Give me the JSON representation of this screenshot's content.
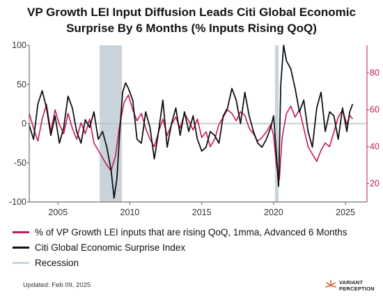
{
  "chart_data": {
    "type": "line",
    "title": "VP Growth LEI Input Diffusion Leads Citi Global Economic Surprise By 6 Months (% Inputs Rising QoQ)",
    "x_range": [
      2003.0,
      2026.5
    ],
    "x_ticks": [
      2005,
      2010,
      2015,
      2020,
      2025
    ],
    "left_axis": {
      "range": [
        -100,
        100
      ],
      "ticks": [
        -100,
        -50,
        0,
        50,
        100
      ]
    },
    "right_axis": {
      "range": [
        10,
        95
      ],
      "ticks": [
        20,
        40,
        60,
        80
      ]
    },
    "grid": false,
    "reference_line": {
      "axis": "left",
      "value": 0
    },
    "recessions": [
      {
        "start": 2007.9,
        "end": 2009.45
      },
      {
        "start": 2020.1,
        "end": 2020.35
      }
    ],
    "series": [
      {
        "name": "% of VP Growth LEI inputs that are rising QoQ, 1mma, Advanced 6 Months",
        "axis": "right",
        "color": "#c2185b",
        "points": [
          [
            2003.0,
            58
          ],
          [
            2003.3,
            50
          ],
          [
            2003.6,
            43
          ],
          [
            2003.9,
            55
          ],
          [
            2004.2,
            63
          ],
          [
            2004.5,
            48
          ],
          [
            2004.8,
            60
          ],
          [
            2005.1,
            52
          ],
          [
            2005.4,
            47
          ],
          [
            2005.7,
            58
          ],
          [
            2006.0,
            50
          ],
          [
            2006.3,
            44
          ],
          [
            2006.6,
            53
          ],
          [
            2006.9,
            47
          ],
          [
            2007.2,
            55
          ],
          [
            2007.5,
            42
          ],
          [
            2007.8,
            38
          ],
          [
            2008.1,
            34
          ],
          [
            2008.4,
            30
          ],
          [
            2008.7,
            27
          ],
          [
            2009.0,
            35
          ],
          [
            2009.3,
            52
          ],
          [
            2009.6,
            64
          ],
          [
            2009.9,
            68
          ],
          [
            2010.2,
            60
          ],
          [
            2010.5,
            54
          ],
          [
            2010.8,
            58
          ],
          [
            2011.1,
            50
          ],
          [
            2011.4,
            44
          ],
          [
            2011.7,
            40
          ],
          [
            2012.0,
            48
          ],
          [
            2012.3,
            55
          ],
          [
            2012.6,
            46
          ],
          [
            2012.9,
            52
          ],
          [
            2013.2,
            56
          ],
          [
            2013.5,
            50
          ],
          [
            2013.8,
            58
          ],
          [
            2014.1,
            54
          ],
          [
            2014.4,
            49
          ],
          [
            2014.7,
            55
          ],
          [
            2015.0,
            45
          ],
          [
            2015.3,
            48
          ],
          [
            2015.6,
            40
          ],
          [
            2015.9,
            44
          ],
          [
            2016.2,
            52
          ],
          [
            2016.5,
            56
          ],
          [
            2016.8,
            60
          ],
          [
            2017.1,
            58
          ],
          [
            2017.4,
            54
          ],
          [
            2017.7,
            59
          ],
          [
            2018.0,
            57
          ],
          [
            2018.3,
            50
          ],
          [
            2018.6,
            47
          ],
          [
            2018.9,
            43
          ],
          [
            2019.2,
            45
          ],
          [
            2019.5,
            48
          ],
          [
            2019.8,
            52
          ],
          [
            2020.0,
            46
          ],
          [
            2020.2,
            30
          ],
          [
            2020.4,
            22
          ],
          [
            2020.6,
            45
          ],
          [
            2020.9,
            58
          ],
          [
            2021.2,
            62
          ],
          [
            2021.5,
            56
          ],
          [
            2021.8,
            60
          ],
          [
            2022.1,
            50
          ],
          [
            2022.4,
            40
          ],
          [
            2022.7,
            36
          ],
          [
            2023.0,
            32
          ],
          [
            2023.3,
            38
          ],
          [
            2023.6,
            42
          ],
          [
            2023.9,
            40
          ],
          [
            2024.2,
            48
          ],
          [
            2024.5,
            56
          ],
          [
            2024.8,
            60
          ],
          [
            2025.1,
            52
          ],
          [
            2025.3,
            57
          ],
          [
            2025.5,
            55
          ]
        ]
      },
      {
        "name": "Citi Global Economic Surprise Index",
        "axis": "left",
        "color": "#111111",
        "points": [
          [
            2003.0,
            -2
          ],
          [
            2003.3,
            -20
          ],
          [
            2003.6,
            25
          ],
          [
            2003.9,
            42
          ],
          [
            2004.2,
            20
          ],
          [
            2004.5,
            -15
          ],
          [
            2004.8,
            10
          ],
          [
            2005.1,
            -25
          ],
          [
            2005.4,
            -5
          ],
          [
            2005.7,
            35
          ],
          [
            2006.0,
            20
          ],
          [
            2006.3,
            -10
          ],
          [
            2006.6,
            -25
          ],
          [
            2006.9,
            5
          ],
          [
            2007.2,
            -5
          ],
          [
            2007.5,
            15
          ],
          [
            2007.8,
            -20
          ],
          [
            2008.1,
            -10
          ],
          [
            2008.4,
            -30
          ],
          [
            2008.7,
            -60
          ],
          [
            2008.9,
            -95
          ],
          [
            2009.1,
            -70
          ],
          [
            2009.3,
            -10
          ],
          [
            2009.5,
            40
          ],
          [
            2009.7,
            52
          ],
          [
            2009.9,
            45
          ],
          [
            2010.2,
            30
          ],
          [
            2010.5,
            -20
          ],
          [
            2010.8,
            -25
          ],
          [
            2011.1,
            15
          ],
          [
            2011.4,
            -5
          ],
          [
            2011.7,
            -45
          ],
          [
            2012.0,
            -10
          ],
          [
            2012.3,
            30
          ],
          [
            2012.6,
            -30
          ],
          [
            2012.9,
            0
          ],
          [
            2013.2,
            20
          ],
          [
            2013.5,
            -15
          ],
          [
            2013.8,
            15
          ],
          [
            2014.1,
            -10
          ],
          [
            2014.4,
            10
          ],
          [
            2014.7,
            -20
          ],
          [
            2015.0,
            -35
          ],
          [
            2015.3,
            -30
          ],
          [
            2015.6,
            -10
          ],
          [
            2015.9,
            -15
          ],
          [
            2016.2,
            -25
          ],
          [
            2016.5,
            10
          ],
          [
            2016.8,
            20
          ],
          [
            2017.1,
            45
          ],
          [
            2017.4,
            30
          ],
          [
            2017.7,
            0
          ],
          [
            2018.0,
            40
          ],
          [
            2018.3,
            10
          ],
          [
            2018.6,
            -10
          ],
          [
            2018.9,
            -25
          ],
          [
            2019.2,
            -30
          ],
          [
            2019.5,
            -20
          ],
          [
            2019.8,
            -5
          ],
          [
            2020.0,
            10
          ],
          [
            2020.2,
            -40
          ],
          [
            2020.35,
            -80
          ],
          [
            2020.5,
            50
          ],
          [
            2020.7,
            110
          ],
          [
            2020.9,
            80
          ],
          [
            2021.2,
            70
          ],
          [
            2021.5,
            45
          ],
          [
            2021.8,
            15
          ],
          [
            2022.1,
            30
          ],
          [
            2022.4,
            -10
          ],
          [
            2022.7,
            -30
          ],
          [
            2023.0,
            20
          ],
          [
            2023.3,
            40
          ],
          [
            2023.6,
            -10
          ],
          [
            2023.9,
            15
          ],
          [
            2024.2,
            10
          ],
          [
            2024.5,
            -20
          ],
          [
            2024.8,
            20
          ],
          [
            2025.1,
            -10
          ],
          [
            2025.3,
            15
          ],
          [
            2025.5,
            25
          ]
        ]
      }
    ],
    "legend": [
      {
        "label": "% of VP Growth LEI inputs that are rising QoQ, 1mma, Advanced 6 Months",
        "color": "#c2185b"
      },
      {
        "label": "Citi Global Economic Surprise Index",
        "color": "#111111"
      },
      {
        "label": "Recession",
        "color": "#c9d3d9"
      }
    ]
  },
  "footer": {
    "updated": "Updated: Feb 09, 2025",
    "brand_line1": "VARIANT",
    "brand_line2": "PERCEPTION"
  },
  "colors": {
    "recession": "#c9d3d9",
    "zero_line": "#b8c2c8",
    "brand_accent": "#e05a2b"
  }
}
